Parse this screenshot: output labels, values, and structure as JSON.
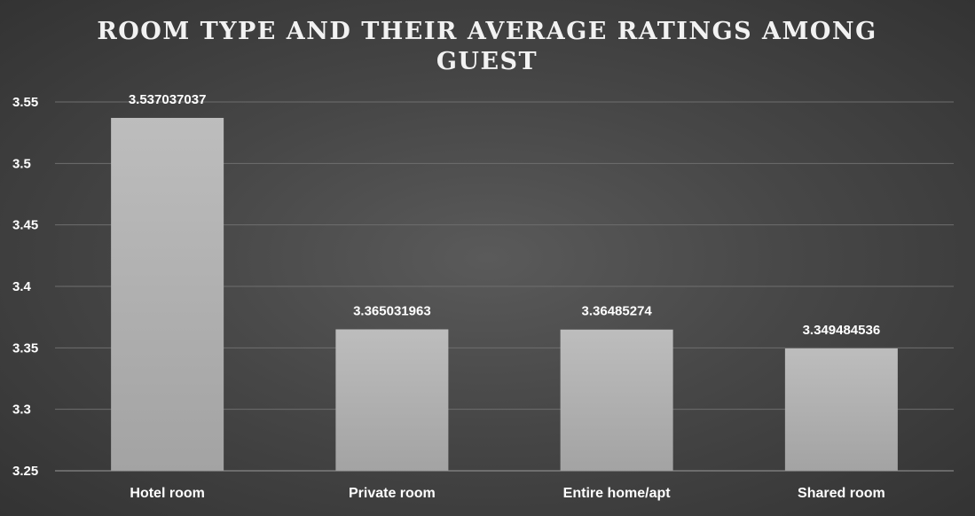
{
  "chart_data": {
    "type": "bar",
    "title_lines": [
      "ROOM TYPE AND THEIR AVERAGE RATINGS AMONG",
      "GUEST"
    ],
    "categories": [
      "Hotel room",
      "Private room",
      "Entire home/apt",
      "Shared room"
    ],
    "values": [
      3.537037037,
      3.365031963,
      3.36485274,
      3.349484536
    ],
    "value_labels": [
      "3.537037037",
      "3.365031963",
      "3.36485274",
      "3.349484536"
    ],
    "ylim": [
      3.25,
      3.55
    ],
    "y_ticks": [
      3.25,
      3.3,
      3.35,
      3.4,
      3.45,
      3.5,
      3.55
    ],
    "y_tick_labels": [
      "3.25",
      "3.3",
      "3.35",
      "3.4",
      "3.45",
      "3.5",
      "3.55"
    ],
    "xlabel": "",
    "ylabel": "",
    "grid": true,
    "colors": {
      "bar_top": "#bdbdbd",
      "bar_bottom": "#a3a3a3",
      "grid": "#6e6e6e",
      "axis": "#9a9a9a"
    }
  }
}
